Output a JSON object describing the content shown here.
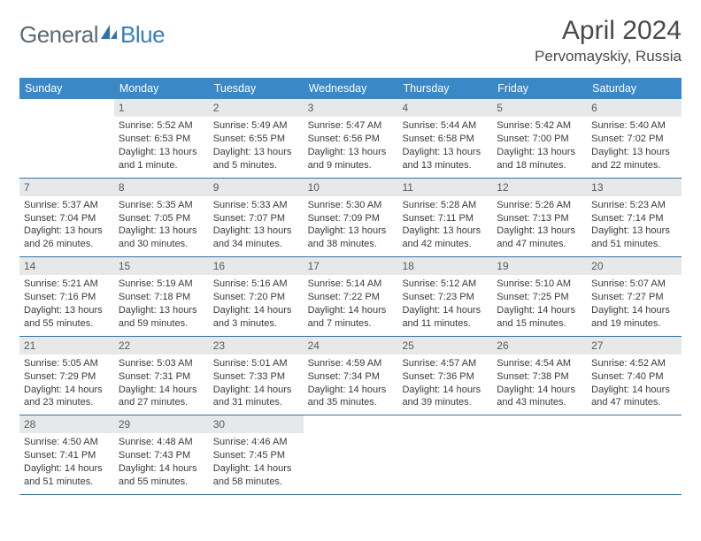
{
  "logo": {
    "general": "General",
    "blue": "Blue"
  },
  "title": "April 2024",
  "location": "Pervomayskiy, Russia",
  "colors": {
    "header_bg": "#3a88c6",
    "header_text": "#ffffff",
    "daynum_bg": "#e7e8e9",
    "rule": "#3a6f9e",
    "logo_gray": "#5d6a74",
    "logo_blue": "#3a7fb5"
  },
  "weekdays": [
    "Sunday",
    "Monday",
    "Tuesday",
    "Wednesday",
    "Thursday",
    "Friday",
    "Saturday"
  ],
  "weeks": [
    [
      null,
      {
        "n": "1",
        "sr": "Sunrise: 5:52 AM",
        "ss": "Sunset: 6:53 PM",
        "d1": "Daylight: 13 hours",
        "d2": "and 1 minute."
      },
      {
        "n": "2",
        "sr": "Sunrise: 5:49 AM",
        "ss": "Sunset: 6:55 PM",
        "d1": "Daylight: 13 hours",
        "d2": "and 5 minutes."
      },
      {
        "n": "3",
        "sr": "Sunrise: 5:47 AM",
        "ss": "Sunset: 6:56 PM",
        "d1": "Daylight: 13 hours",
        "d2": "and 9 minutes."
      },
      {
        "n": "4",
        "sr": "Sunrise: 5:44 AM",
        "ss": "Sunset: 6:58 PM",
        "d1": "Daylight: 13 hours",
        "d2": "and 13 minutes."
      },
      {
        "n": "5",
        "sr": "Sunrise: 5:42 AM",
        "ss": "Sunset: 7:00 PM",
        "d1": "Daylight: 13 hours",
        "d2": "and 18 minutes."
      },
      {
        "n": "6",
        "sr": "Sunrise: 5:40 AM",
        "ss": "Sunset: 7:02 PM",
        "d1": "Daylight: 13 hours",
        "d2": "and 22 minutes."
      }
    ],
    [
      {
        "n": "7",
        "sr": "Sunrise: 5:37 AM",
        "ss": "Sunset: 7:04 PM",
        "d1": "Daylight: 13 hours",
        "d2": "and 26 minutes."
      },
      {
        "n": "8",
        "sr": "Sunrise: 5:35 AM",
        "ss": "Sunset: 7:05 PM",
        "d1": "Daylight: 13 hours",
        "d2": "and 30 minutes."
      },
      {
        "n": "9",
        "sr": "Sunrise: 5:33 AM",
        "ss": "Sunset: 7:07 PM",
        "d1": "Daylight: 13 hours",
        "d2": "and 34 minutes."
      },
      {
        "n": "10",
        "sr": "Sunrise: 5:30 AM",
        "ss": "Sunset: 7:09 PM",
        "d1": "Daylight: 13 hours",
        "d2": "and 38 minutes."
      },
      {
        "n": "11",
        "sr": "Sunrise: 5:28 AM",
        "ss": "Sunset: 7:11 PM",
        "d1": "Daylight: 13 hours",
        "d2": "and 42 minutes."
      },
      {
        "n": "12",
        "sr": "Sunrise: 5:26 AM",
        "ss": "Sunset: 7:13 PM",
        "d1": "Daylight: 13 hours",
        "d2": "and 47 minutes."
      },
      {
        "n": "13",
        "sr": "Sunrise: 5:23 AM",
        "ss": "Sunset: 7:14 PM",
        "d1": "Daylight: 13 hours",
        "d2": "and 51 minutes."
      }
    ],
    [
      {
        "n": "14",
        "sr": "Sunrise: 5:21 AM",
        "ss": "Sunset: 7:16 PM",
        "d1": "Daylight: 13 hours",
        "d2": "and 55 minutes."
      },
      {
        "n": "15",
        "sr": "Sunrise: 5:19 AM",
        "ss": "Sunset: 7:18 PM",
        "d1": "Daylight: 13 hours",
        "d2": "and 59 minutes."
      },
      {
        "n": "16",
        "sr": "Sunrise: 5:16 AM",
        "ss": "Sunset: 7:20 PM",
        "d1": "Daylight: 14 hours",
        "d2": "and 3 minutes."
      },
      {
        "n": "17",
        "sr": "Sunrise: 5:14 AM",
        "ss": "Sunset: 7:22 PM",
        "d1": "Daylight: 14 hours",
        "d2": "and 7 minutes."
      },
      {
        "n": "18",
        "sr": "Sunrise: 5:12 AM",
        "ss": "Sunset: 7:23 PM",
        "d1": "Daylight: 14 hours",
        "d2": "and 11 minutes."
      },
      {
        "n": "19",
        "sr": "Sunrise: 5:10 AM",
        "ss": "Sunset: 7:25 PM",
        "d1": "Daylight: 14 hours",
        "d2": "and 15 minutes."
      },
      {
        "n": "20",
        "sr": "Sunrise: 5:07 AM",
        "ss": "Sunset: 7:27 PM",
        "d1": "Daylight: 14 hours",
        "d2": "and 19 minutes."
      }
    ],
    [
      {
        "n": "21",
        "sr": "Sunrise: 5:05 AM",
        "ss": "Sunset: 7:29 PM",
        "d1": "Daylight: 14 hours",
        "d2": "and 23 minutes."
      },
      {
        "n": "22",
        "sr": "Sunrise: 5:03 AM",
        "ss": "Sunset: 7:31 PM",
        "d1": "Daylight: 14 hours",
        "d2": "and 27 minutes."
      },
      {
        "n": "23",
        "sr": "Sunrise: 5:01 AM",
        "ss": "Sunset: 7:33 PM",
        "d1": "Daylight: 14 hours",
        "d2": "and 31 minutes."
      },
      {
        "n": "24",
        "sr": "Sunrise: 4:59 AM",
        "ss": "Sunset: 7:34 PM",
        "d1": "Daylight: 14 hours",
        "d2": "and 35 minutes."
      },
      {
        "n": "25",
        "sr": "Sunrise: 4:57 AM",
        "ss": "Sunset: 7:36 PM",
        "d1": "Daylight: 14 hours",
        "d2": "and 39 minutes."
      },
      {
        "n": "26",
        "sr": "Sunrise: 4:54 AM",
        "ss": "Sunset: 7:38 PM",
        "d1": "Daylight: 14 hours",
        "d2": "and 43 minutes."
      },
      {
        "n": "27",
        "sr": "Sunrise: 4:52 AM",
        "ss": "Sunset: 7:40 PM",
        "d1": "Daylight: 14 hours",
        "d2": "and 47 minutes."
      }
    ],
    [
      {
        "n": "28",
        "sr": "Sunrise: 4:50 AM",
        "ss": "Sunset: 7:41 PM",
        "d1": "Daylight: 14 hours",
        "d2": "and 51 minutes."
      },
      {
        "n": "29",
        "sr": "Sunrise: 4:48 AM",
        "ss": "Sunset: 7:43 PM",
        "d1": "Daylight: 14 hours",
        "d2": "and 55 minutes."
      },
      {
        "n": "30",
        "sr": "Sunrise: 4:46 AM",
        "ss": "Sunset: 7:45 PM",
        "d1": "Daylight: 14 hours",
        "d2": "and 58 minutes."
      },
      null,
      null,
      null,
      null
    ]
  ]
}
